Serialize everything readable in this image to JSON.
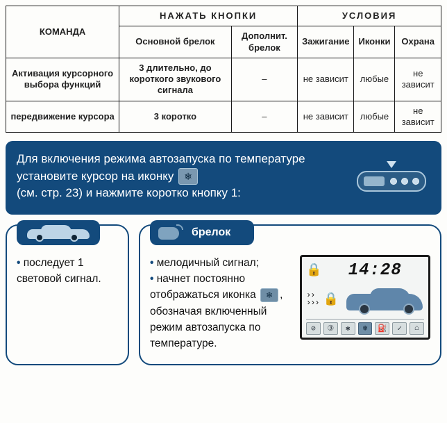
{
  "colors": {
    "table_border": "#1a1a1a",
    "banner_bg": "#134a7c",
    "banner_text": "#ffffff",
    "card_border": "#134a7c",
    "icon_bg": "#6f8ea6",
    "lcd_border": "#1a1a1a",
    "lcd_bg": "#f3f5f4",
    "car_color": "#5f86aa"
  },
  "table": {
    "headers": {
      "command": "КОМАНДА",
      "press_group": "НАЖАТЬ   КНОПКИ",
      "cond_group": "УСЛОВИЯ",
      "main_fob": "Основной брелок",
      "aux_fob": "Дополнит. брелок",
      "ignition": "Зажигание",
      "icons": "Иконки",
      "guard": "Охрана"
    },
    "rows": [
      {
        "command": "Активация курсорного выбора функций",
        "main_fob": "3 длительно, до короткого звукового сигнала",
        "aux_fob": "–",
        "ignition": "не зависит",
        "icons": "любые",
        "guard": "не зависит"
      },
      {
        "command": "передвижение курсора",
        "main_fob": "3 коротко",
        "aux_fob": "–",
        "ignition": "не зависит",
        "icons": "любые",
        "guard": "не зависит"
      }
    ]
  },
  "banner": {
    "text_before": "Для включения режима автозапуска по температуре установите курсор на иконку",
    "text_after": "(см. стр. 23) и нажмите коротко кнопку 1:",
    "temp_icon_glyph": "❄",
    "remote": {
      "buttons": 3
    }
  },
  "left_card": {
    "bullet": "последует 1 световой сигнал."
  },
  "right_card": {
    "tab_label": "брелок",
    "bullet1": "мелодичный сигнал;",
    "bullet2_before": "начнет постоянно отображаться иконка",
    "bullet2_after": ", обозначая включенный режим автозапуска по температуре.",
    "inline_icon_glyph": "❄"
  },
  "lcd": {
    "time": "14:28",
    "lock_glyph": "🔒",
    "padlock_glyph": "🔒",
    "bottom_icons": [
      "⊘",
      "③",
      "✱",
      "❄",
      "⛽",
      "✓",
      "⌂"
    ],
    "active_icon_index": 3
  }
}
